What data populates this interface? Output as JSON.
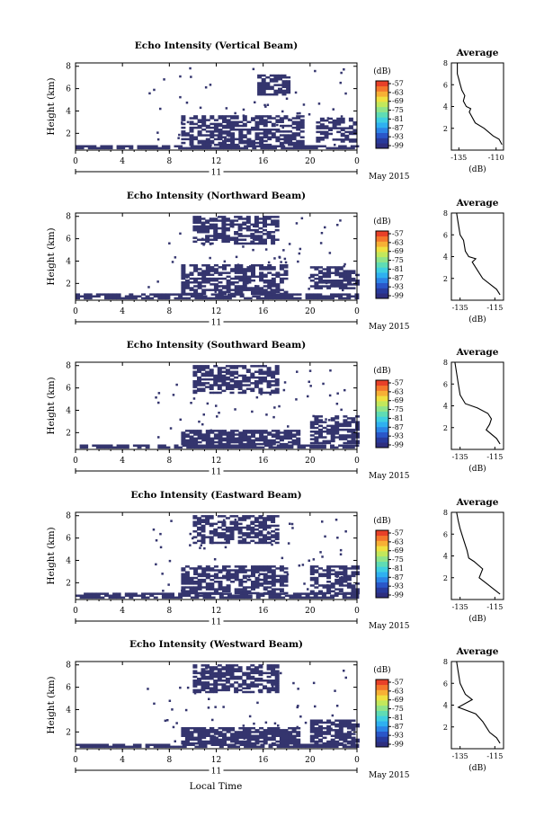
{
  "figure": {
    "xlabel": "Local Time",
    "colorbar_unit": "(dB)",
    "colorbar_ticks": [
      "-57",
      "-63",
      "-69",
      "-75",
      "-81",
      "-87",
      "-93",
      "-99"
    ],
    "colorbar_colors": [
      "#2e2e7e",
      "#283a9c",
      "#2a56c8",
      "#2c84e6",
      "#2fb0f0",
      "#3fcfe0",
      "#5fdcb4",
      "#8fe38a",
      "#c2e85c",
      "#f0e040",
      "#f7b035",
      "#f4782c",
      "#e84028"
    ],
    "field_color": "#34356e",
    "date_label": "May 2015",
    "day_label": "11",
    "avg_title": "Average",
    "avg_unit": "(dB)"
  },
  "chart_data": [
    {
      "type": "heatmap",
      "title": "Echo Intensity (Vertical Beam)",
      "ylabel": "Height (km)",
      "xticks": [
        "0",
        "4",
        "8",
        "12",
        "16",
        "20",
        "0"
      ],
      "yticks": [
        "2",
        "4",
        "6",
        "8"
      ],
      "xlim": [
        0,
        24
      ],
      "ylim": [
        0.5,
        8.3
      ],
      "echo_regions": [
        {
          "t0": 0,
          "t1": 24,
          "h0": 0.6,
          "h1": 0.9
        },
        {
          "t0": 9,
          "t1": 19.5,
          "h0": 0.9,
          "h1": 3.6
        },
        {
          "t0": 20.5,
          "t1": 24,
          "h0": 1.2,
          "h1": 3.3
        },
        {
          "t0": 15.5,
          "t1": 18.2,
          "h0": 5.4,
          "h1": 7.2
        }
      ],
      "average_profile": {
        "xticks": [
          "-135",
          "-110"
        ],
        "xlim": [
          -140,
          -105
        ],
        "ylim": [
          0,
          8
        ],
        "yticks": [
          "2",
          "4",
          "6",
          "8"
        ],
        "x": [
          -106,
          -108,
          -112,
          -118,
          -124,
          -128,
          -127,
          -130,
          -132,
          -131,
          -133,
          -134,
          -135,
          -136,
          -136
        ],
        "y": [
          0.5,
          1.0,
          1.3,
          2.0,
          2.5,
          3.5,
          3.8,
          4.0,
          4.5,
          5.0,
          5.5,
          6.0,
          6.5,
          7.0,
          8.0
        ]
      }
    },
    {
      "type": "heatmap",
      "title": "Echo Intensity (Northward Beam)",
      "ylabel": "Height (km)",
      "xticks": [
        "0",
        "4",
        "8",
        "12",
        "16",
        "20",
        "0"
      ],
      "yticks": [
        "2",
        "4",
        "6",
        "8"
      ],
      "xlim": [
        0,
        24
      ],
      "ylim": [
        0.5,
        8.3
      ],
      "echo_regions": [
        {
          "t0": 0,
          "t1": 24,
          "h0": 0.6,
          "h1": 1.0
        },
        {
          "t0": 9,
          "t1": 18,
          "h0": 1.0,
          "h1": 3.6
        },
        {
          "t0": 20,
          "t1": 24,
          "h0": 1.5,
          "h1": 3.5
        },
        {
          "t0": 10,
          "t1": 17,
          "h0": 5.5,
          "h1": 8.0
        }
      ],
      "average_profile": {
        "xticks": [
          "-135",
          "-115"
        ],
        "xlim": [
          -140,
          -110
        ],
        "ylim": [
          0,
          8
        ],
        "yticks": [
          "2",
          "4",
          "6",
          "8"
        ],
        "x": [
          -112,
          -114,
          -118,
          -122,
          -124,
          -128,
          -126,
          -130,
          -132,
          -133,
          -135,
          -136,
          -137
        ],
        "y": [
          0.5,
          1.0,
          1.5,
          2.0,
          2.5,
          3.5,
          3.8,
          4.0,
          4.5,
          5.5,
          6.0,
          7.0,
          8.0
        ]
      }
    },
    {
      "type": "heatmap",
      "title": "Echo Intensity (Southward Beam)",
      "ylabel": "Height (km)",
      "xticks": [
        "0",
        "4",
        "8",
        "12",
        "16",
        "20",
        "0"
      ],
      "yticks": [
        "2",
        "4",
        "6",
        "8"
      ],
      "xlim": [
        0,
        24
      ],
      "ylim": [
        0.5,
        8.3
      ],
      "echo_regions": [
        {
          "t0": 0,
          "t1": 24,
          "h0": 0.6,
          "h1": 0.9
        },
        {
          "t0": 9,
          "t1": 19,
          "h0": 0.9,
          "h1": 2.2
        },
        {
          "t0": 20,
          "t1": 24,
          "h0": 1.0,
          "h1": 3.5
        },
        {
          "t0": 10,
          "t1": 17,
          "h0": 5.5,
          "h1": 8.0
        }
      ],
      "average_profile": {
        "xticks": [
          "-135",
          "-115"
        ],
        "xlim": [
          -140,
          -110
        ],
        "ylim": [
          0,
          8
        ],
        "yticks": [
          "2",
          "4",
          "6",
          "8"
        ],
        "x": [
          -112,
          -114,
          -120,
          -118,
          -117,
          -119,
          -125,
          -132,
          -135,
          -136,
          -137,
          -138
        ],
        "y": [
          0.5,
          1.0,
          1.8,
          2.3,
          2.8,
          3.3,
          3.8,
          4.2,
          5.0,
          6.0,
          7.0,
          8.0
        ]
      }
    },
    {
      "type": "heatmap",
      "title": "Echo Intensity (Eastward Beam)",
      "ylabel": "Height (km)",
      "xticks": [
        "0",
        "4",
        "8",
        "12",
        "16",
        "20",
        "0"
      ],
      "yticks": [
        "2",
        "4",
        "6",
        "8"
      ],
      "xlim": [
        0,
        24
      ],
      "ylim": [
        0.5,
        8.3
      ],
      "echo_regions": [
        {
          "t0": 0,
          "t1": 24,
          "h0": 0.6,
          "h1": 1.0
        },
        {
          "t0": 9,
          "t1": 18,
          "h0": 1.0,
          "h1": 3.4
        },
        {
          "t0": 20,
          "t1": 24,
          "h0": 1.0,
          "h1": 3.4
        },
        {
          "t0": 10,
          "t1": 17,
          "h0": 5.5,
          "h1": 8.0
        }
      ],
      "average_profile": {
        "xticks": [
          "-135",
          "-115"
        ],
        "xlim": [
          -140,
          -110
        ],
        "ylim": [
          0,
          8
        ],
        "yticks": [
          "2",
          "4",
          "6",
          "8"
        ],
        "x": [
          -112,
          -116,
          -120,
          -124,
          -122,
          -127,
          -130,
          -131,
          -133,
          -135,
          -136,
          -137
        ],
        "y": [
          0.5,
          1.0,
          1.5,
          2.0,
          2.8,
          3.5,
          3.8,
          4.5,
          5.5,
          6.5,
          7.2,
          8.0
        ]
      }
    },
    {
      "type": "heatmap",
      "title": "Echo Intensity (Westward Beam)",
      "ylabel": "Height (km)",
      "xticks": [
        "0",
        "4",
        "8",
        "12",
        "16",
        "20",
        "0"
      ],
      "yticks": [
        "2",
        "4",
        "6",
        "8"
      ],
      "xlim": [
        0,
        24
      ],
      "ylim": [
        0.5,
        8.3
      ],
      "echo_regions": [
        {
          "t0": 0,
          "t1": 24,
          "h0": 0.6,
          "h1": 0.9
        },
        {
          "t0": 9,
          "t1": 19,
          "h0": 0.9,
          "h1": 2.4
        },
        {
          "t0": 20,
          "t1": 24,
          "h0": 0.9,
          "h1": 3.0
        },
        {
          "t0": 10,
          "t1": 17,
          "h0": 5.5,
          "h1": 8.0
        }
      ],
      "average_profile": {
        "xticks": [
          "-135",
          "-115"
        ],
        "xlim": [
          -140,
          -110
        ],
        "ylim": [
          0,
          8
        ],
        "yticks": [
          "2",
          "4",
          "6",
          "8"
        ],
        "x": [
          -112,
          -114,
          -118,
          -120,
          -122,
          -126,
          -136,
          -128,
          -132,
          -135,
          -136,
          -137
        ],
        "y": [
          0.5,
          1.0,
          1.5,
          2.0,
          2.5,
          3.2,
          3.8,
          4.5,
          5.0,
          6.0,
          7.0,
          8.0
        ]
      }
    }
  ]
}
